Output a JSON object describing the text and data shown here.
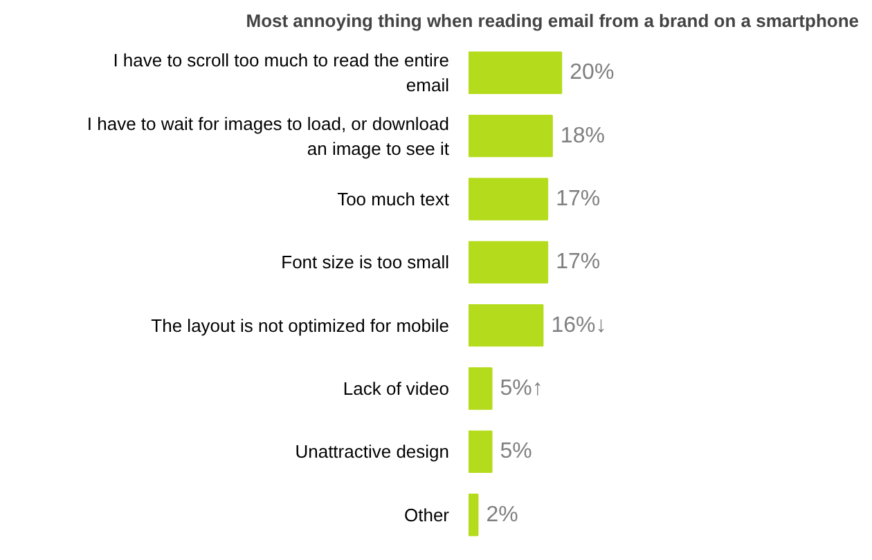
{
  "chart_data": {
    "type": "bar",
    "orientation": "horizontal",
    "title": "Most annoying thing when reading email from a brand on a smartphone",
    "categories": [
      "I have to scroll too much to read the entire email",
      "I have to wait for images to load, or download an image to see it",
      "Too much text",
      "Font size is too small",
      "The layout is not optimized for mobile",
      "Lack of video",
      "Unattractive design",
      "Other"
    ],
    "values": [
      20,
      18,
      17,
      17,
      16,
      5,
      5,
      2
    ],
    "value_labels": [
      "20%",
      "18%",
      "17%",
      "17%",
      "16%↓",
      "5%↑",
      "5%",
      "2%"
    ],
    "color": "#b5dc1c",
    "grid": false
  }
}
